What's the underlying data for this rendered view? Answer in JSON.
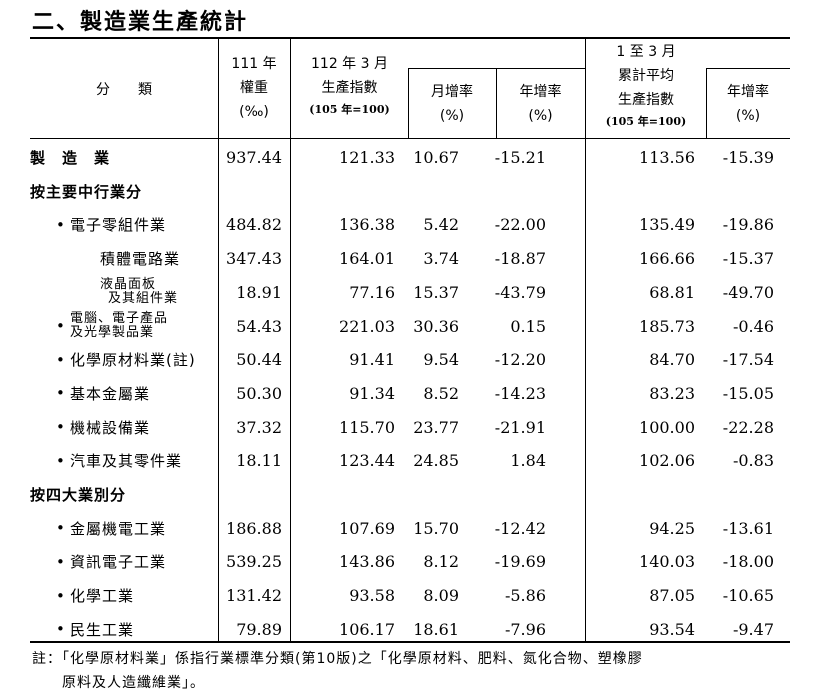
{
  "title": "二、製造業生產統計",
  "headers": {
    "category": "分　　類",
    "weight": [
      "111 年",
      "權重",
      "(‰)"
    ],
    "index": [
      "112 年 3 月",
      "生產指數"
    ],
    "index_base": "(105 年=100)",
    "mom": [
      "月增率",
      "(%)"
    ],
    "yoy": [
      "年增率",
      "(%)"
    ],
    "cum_index": [
      "1 至 3 月",
      "累計平均",
      "生產指數"
    ],
    "cum_base": "(105 年=100)",
    "cum_yoy": [
      "年增率",
      "(%)"
    ]
  },
  "rows": [
    {
      "label": "製　造　業",
      "style": "bold",
      "bullet": false,
      "values": [
        "937.44",
        "121.33",
        "10.67",
        "-15.21",
        "113.56",
        "-15.39"
      ]
    },
    {
      "label": "按主要中行業分",
      "style": "bold",
      "bullet": false,
      "values": []
    },
    {
      "label": "電子零組件業",
      "style": "l1",
      "bullet": true,
      "values": [
        "484.82",
        "136.38",
        "5.42",
        "-22.00",
        "135.49",
        "-19.86"
      ]
    },
    {
      "label": "積體電路業",
      "style": "l2",
      "bullet": false,
      "values": [
        "347.43",
        "164.01",
        "3.74",
        "-18.87",
        "166.66",
        "-15.37"
      ]
    },
    {
      "label": "液晶面板",
      "label2": "及其組件業",
      "style": "l2two",
      "bullet": false,
      "values": [
        "18.91",
        "77.16",
        "15.37",
        "-43.79",
        "68.81",
        "-49.70"
      ]
    },
    {
      "label": "電腦、電子產品",
      "label2": "及光學製品業",
      "style": "l1two",
      "bullet": true,
      "values": [
        "54.43",
        "221.03",
        "30.36",
        "0.15",
        "185.73",
        "-0.46"
      ]
    },
    {
      "label": "化學原材料業(註)",
      "style": "l1",
      "bullet": true,
      "values": [
        "50.44",
        "91.41",
        "9.54",
        "-12.20",
        "84.70",
        "-17.54"
      ]
    },
    {
      "label": "基本金屬業",
      "style": "l1",
      "bullet": true,
      "values": [
        "50.30",
        "91.34",
        "8.52",
        "-14.23",
        "83.23",
        "-15.05"
      ]
    },
    {
      "label": "機械設備業",
      "style": "l1",
      "bullet": true,
      "values": [
        "37.32",
        "115.70",
        "23.77",
        "-21.91",
        "100.00",
        "-22.28"
      ]
    },
    {
      "label": "汽車及其零件業",
      "style": "l1",
      "bullet": true,
      "values": [
        "18.11",
        "123.44",
        "24.85",
        "1.84",
        "102.06",
        "-0.83"
      ]
    },
    {
      "label": "按四大業別分",
      "style": "bold",
      "bullet": false,
      "values": []
    },
    {
      "label": "金屬機電工業",
      "style": "l1",
      "bullet": true,
      "values": [
        "186.88",
        "107.69",
        "15.70",
        "-12.42",
        "94.25",
        "-13.61"
      ]
    },
    {
      "label": "資訊電子工業",
      "style": "l1",
      "bullet": true,
      "values": [
        "539.25",
        "143.86",
        "8.12",
        "-19.69",
        "140.03",
        "-18.00"
      ]
    },
    {
      "label": "化學工業",
      "style": "l1",
      "bullet": true,
      "values": [
        "131.42",
        "93.58",
        "8.09",
        "-5.86",
        "87.05",
        "-10.65"
      ]
    },
    {
      "label": "民生工業",
      "style": "l1",
      "bullet": true,
      "values": [
        "79.89",
        "106.17",
        "18.61",
        "-7.96",
        "93.54",
        "-9.47"
      ]
    }
  ],
  "bullet_char": "•",
  "note": "註：「化學原材料業」係指行業標準分類(第10版)之「化學原材料、肥料、氮化合物、塑橡膠",
  "note2": "　　原料及人造纖維業」。"
}
